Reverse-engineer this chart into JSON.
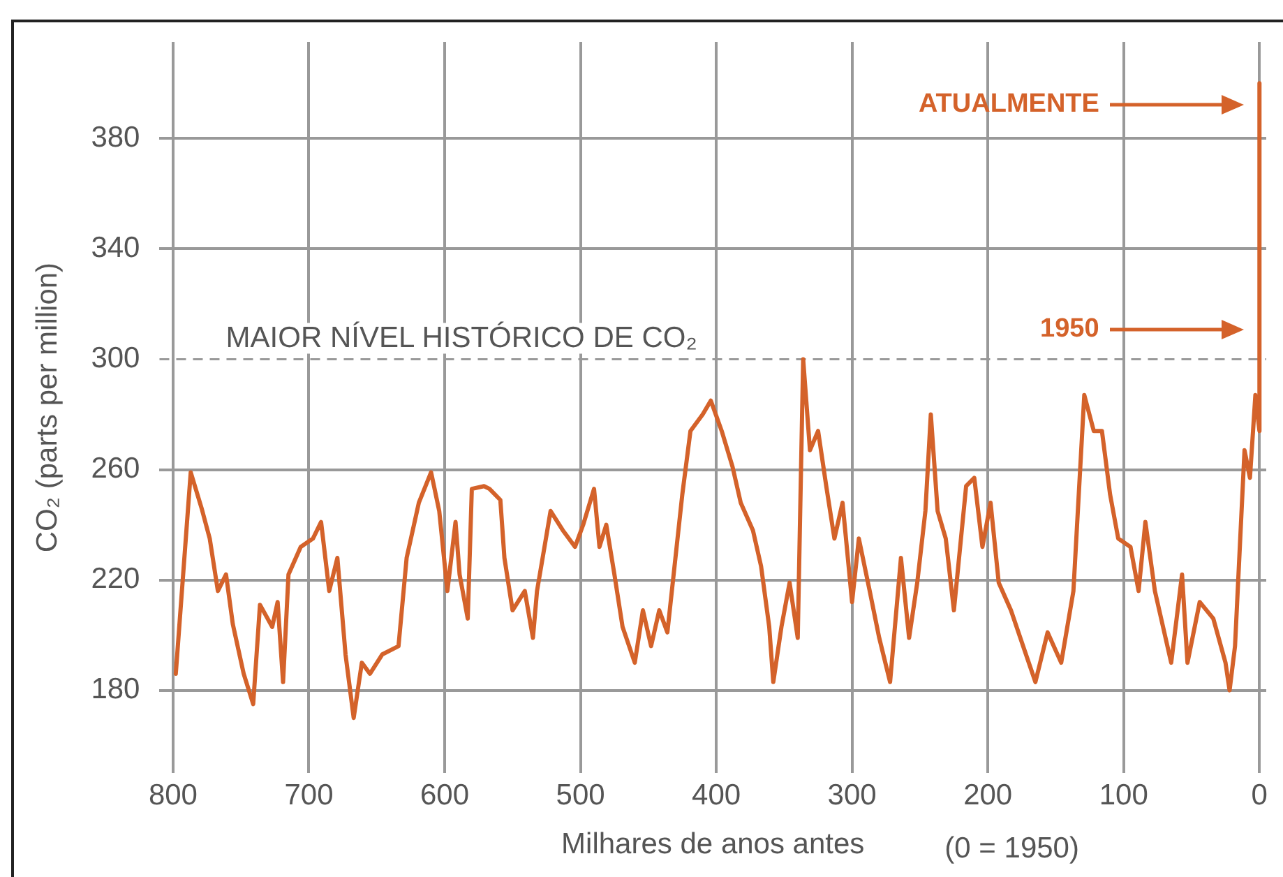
{
  "chart_data": {
    "type": "line",
    "xlabel": "Milhares de anos antes",
    "ylabel": "CO₂ (parts per million)",
    "xlim": [
      810,
      -5
    ],
    "ylim": [
      150,
      415
    ],
    "xticks": [
      800,
      700,
      600,
      500,
      400,
      300,
      200,
      100,
      0
    ],
    "yticks": [
      180,
      220,
      260,
      300,
      340,
      380
    ],
    "grid": true,
    "legend": false,
    "marker": "none",
    "line_style": "solid",
    "ref_lines": [
      {
        "axis": "y",
        "value": 300,
        "label": "MAIOR NÍVEL HISTÓRICO DE CO₂",
        "color": "#999999",
        "line_style": "dashed"
      }
    ],
    "annotations": [
      "ATUALMENTE",
      "1950",
      "(0 = 1950)"
    ],
    "series": [
      {
        "color": "#d4622a",
        "x": [
          798,
          787,
          779,
          773,
          767,
          761,
          756,
          748,
          741,
          736,
          727,
          723,
          719,
          715,
          706,
          697,
          691,
          685,
          679,
          673,
          667,
          661,
          655,
          646,
          634,
          628,
          619,
          610,
          604,
          598,
          592,
          589,
          583,
          580,
          571,
          567,
          559,
          556,
          550,
          541,
          535,
          532,
          522,
          513,
          504,
          498,
          490,
          486,
          481,
          475,
          469,
          460,
          454,
          448,
          442,
          436,
          425,
          419,
          410,
          404,
          396,
          388,
          382,
          373,
          367,
          361,
          358,
          352,
          346,
          340,
          336,
          331,
          325,
          319,
          313,
          307,
          300,
          295,
          287,
          280,
          272,
          264,
          258,
          252,
          246,
          242,
          237,
          231,
          225,
          216,
          210,
          204,
          198,
          192,
          183,
          174,
          165,
          156,
          146,
          137,
          129,
          122,
          116,
          110,
          104,
          95,
          89,
          84,
          77,
          65,
          57,
          53,
          44,
          34,
          25,
          22,
          18,
          11,
          7,
          3,
          0,
          0
        ],
        "values": [
          186,
          259,
          246,
          235,
          216,
          222,
          204,
          186,
          175,
          211,
          203,
          212,
          183,
          222,
          232,
          235,
          241,
          216,
          228,
          193,
          170,
          190,
          186,
          193,
          196,
          228,
          248,
          259,
          245,
          216,
          241,
          222,
          206,
          253,
          254,
          253,
          249,
          228,
          209,
          216,
          199,
          216,
          245,
          238,
          232,
          240,
          253,
          232,
          240,
          222,
          203,
          190,
          209,
          196,
          209,
          201,
          251,
          274,
          280,
          285,
          274,
          261,
          248,
          238,
          225,
          203,
          183,
          203,
          219,
          199,
          300,
          267,
          274,
          254,
          235,
          248,
          212,
          235,
          216,
          199,
          183,
          228,
          199,
          219,
          245,
          280,
          245,
          235,
          209,
          254,
          257,
          232,
          248,
          219,
          209,
          196,
          183,
          201,
          190,
          216,
          287,
          274,
          274,
          251,
          235,
          232,
          216,
          241,
          216,
          190,
          222,
          190,
          212,
          206,
          190,
          180,
          196,
          267,
          257,
          287,
          274,
          400
        ]
      }
    ]
  }
}
